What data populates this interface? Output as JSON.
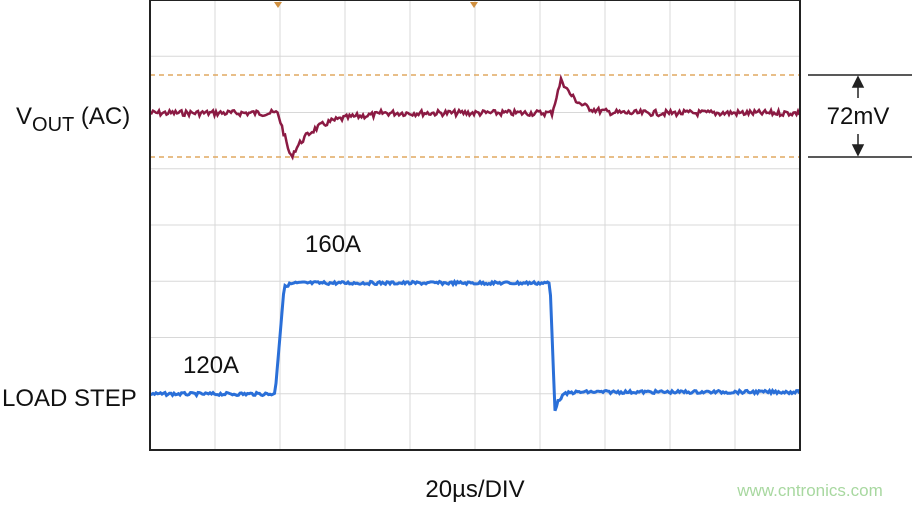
{
  "labels": {
    "vout": "V",
    "vout_sub": "OUT",
    "vout_suffix": " (AC)",
    "load_step": "LOAD STEP",
    "amplitude": "72mV",
    "high_current": "160A",
    "low_current": "120A",
    "timebase": "20µs/DIV",
    "watermark": "www.cntronics.com"
  }
}
